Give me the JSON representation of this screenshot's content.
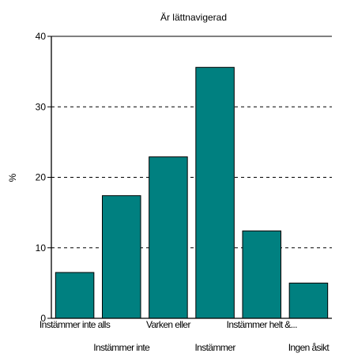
{
  "chart_data": {
    "type": "bar",
    "title": "Är lättnavigerad",
    "xlabel": "",
    "ylabel": "%",
    "categories": [
      "Instämmer inte alls",
      "Instämmer inte",
      "Varken eller",
      "Instämmer",
      "Instämmer helt &...",
      "Ingen åsikt"
    ],
    "values": [
      6.5,
      17.4,
      22.9,
      35.6,
      12.4,
      5.0
    ],
    "ylim": [
      0,
      40
    ],
    "yticks": [
      "0",
      "10",
      "20",
      "30",
      "40"
    ],
    "grid": "horizontal dashed",
    "colors": {
      "bar": "#008080",
      "bar_stroke": "#000000",
      "grid": "#000000"
    }
  }
}
